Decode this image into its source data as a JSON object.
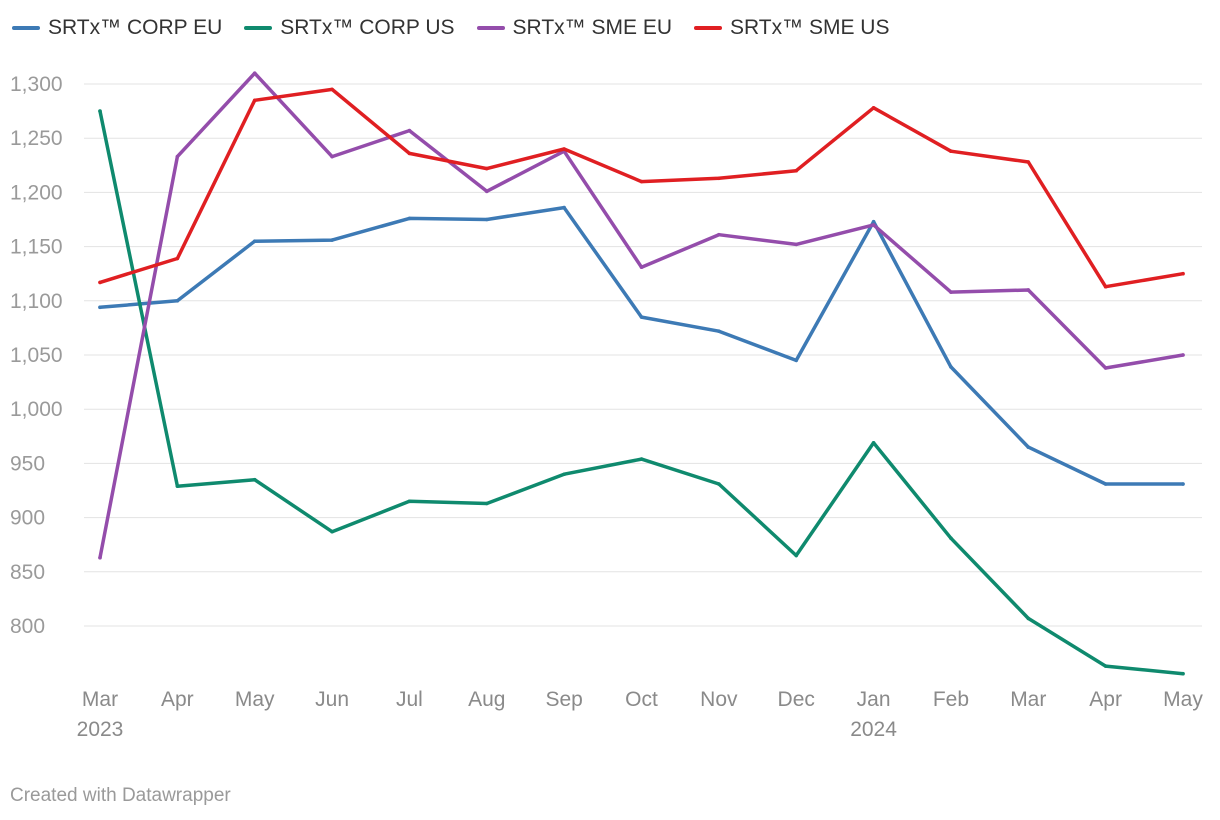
{
  "chart_data": {
    "type": "line",
    "title": "",
    "xlabel": "",
    "ylabel": "",
    "ylim": [
      750,
      1310
    ],
    "yticks": [
      800,
      850,
      900,
      950,
      1000,
      1050,
      1100,
      1150,
      1200,
      1250,
      1300
    ],
    "ytick_labels": [
      "800",
      "850",
      "900",
      "950",
      "1,000",
      "1,050",
      "1,100",
      "1,150",
      "1,200",
      "1,250",
      "1,300"
    ],
    "categories": [
      "Mar 2023",
      "Apr 2023",
      "May 2023",
      "Jun 2023",
      "Jul 2023",
      "Aug 2023",
      "Sep 2023",
      "Oct 2023",
      "Nov 2023",
      "Dec 2023",
      "Jan 2024",
      "Feb 2024",
      "Mar 2024",
      "Apr 2024",
      "May 2024"
    ],
    "x_tick_labels": [
      "Mar",
      "Apr",
      "May",
      "Jun",
      "Jul",
      "Aug",
      "Sep",
      "Oct",
      "Nov",
      "Dec",
      "Jan",
      "Feb",
      "Mar",
      "Apr",
      "May"
    ],
    "x_year_labels": [
      {
        "index": 0,
        "label": "2023"
      },
      {
        "index": 10,
        "label": "2024"
      }
    ],
    "grid": true,
    "legend_position": "top-left",
    "series": [
      {
        "name": "SRTx™ CORP EU",
        "color": "#3d7ab5",
        "values": [
          1094,
          1100,
          1155,
          1156,
          1176,
          1175,
          1186,
          1085,
          1072,
          1045,
          1173,
          1039,
          965,
          931,
          931
        ]
      },
      {
        "name": "SRTx™ CORP US",
        "color": "#0f8a6e",
        "values": [
          1275,
          929,
          935,
          887,
          915,
          913,
          940,
          954,
          931,
          865,
          969,
          881,
          807,
          763,
          756
        ]
      },
      {
        "name": "SRTx™ SME EU",
        "color": "#944dab",
        "values": [
          863,
          1233,
          1310,
          1233,
          1257,
          1201,
          1238,
          1131,
          1161,
          1152,
          1170,
          1108,
          1110,
          1038,
          1050
        ]
      },
      {
        "name": "SRTx™ SME US",
        "color": "#e01f22",
        "values": [
          1117,
          1139,
          1285,
          1295,
          1236,
          1222,
          1240,
          1210,
          1213,
          1220,
          1278,
          1238,
          1228,
          1113,
          1125
        ]
      }
    ]
  },
  "footer": {
    "credit": "Created with Datawrapper"
  }
}
